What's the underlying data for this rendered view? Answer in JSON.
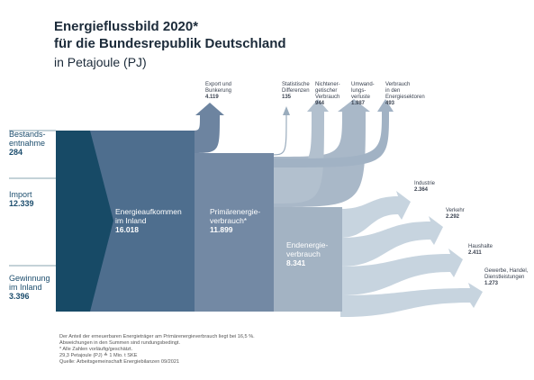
{
  "header": {
    "title": [
      "Energieflussbild 2020*",
      "für die Bundesrepublik Deutschland"
    ],
    "unit": "in Petajoule (PJ)"
  },
  "sources": [
    {
      "label": [
        "Bestands-",
        "entnahme"
      ],
      "value": "284"
    },
    {
      "label": [
        "Import"
      ],
      "value": "12.339"
    },
    {
      "label": [
        "Gewinnung",
        "im Inland"
      ],
      "value": "3.396"
    }
  ],
  "blocks": [
    {
      "label": [
        "Energieaufkommen",
        "im Inland"
      ],
      "value": "16.018"
    },
    {
      "label": [
        "Primärenergie-",
        "verbrauch*"
      ],
      "value": "11.899"
    },
    {
      "label": [
        "Endenergie-",
        "verbrauch"
      ],
      "value": "8.341"
    }
  ],
  "outflows": [
    {
      "label": [
        "Export und",
        "Bunkerung"
      ],
      "value": "4.119"
    },
    {
      "label": [
        "Statistische",
        "Differenzen"
      ],
      "value": "135"
    },
    {
      "label": [
        "Nichtener-",
        "getischer",
        "Verbrauch"
      ],
      "value": "944"
    },
    {
      "label": [
        "Umwand-",
        "lungs-",
        "verluste"
      ],
      "value": "1.987"
    },
    {
      "label": [
        "Verbrauch",
        "in den",
        "Energiesektoren"
      ],
      "value": "493"
    }
  ],
  "sectors": [
    {
      "label": [
        "Industrie"
      ],
      "value": "2.364"
    },
    {
      "label": [
        "Verkehr"
      ],
      "value": "2.292"
    },
    {
      "label": [
        "Haushalte"
      ],
      "value": "2.411"
    },
    {
      "label": [
        "Gewerbe, Handel,",
        "Dienstleistungen"
      ],
      "value": "1.273"
    }
  ],
  "notes": [
    "Der Anteil der erneuerbaren Energieträger am Primärenergieverbrauch liegt bei 16,5 %.",
    "Abweichungen in den Summen sind rundungsbedingt.",
    "* Alle Zahlen vorläufig/geschätzt.",
    "29,3 Petajoule (PJ) ≙ 1 Mio. t SKE",
    "Quelle: Arbeitsgemeinschaft Energiebilanzen 09/2021"
  ]
}
